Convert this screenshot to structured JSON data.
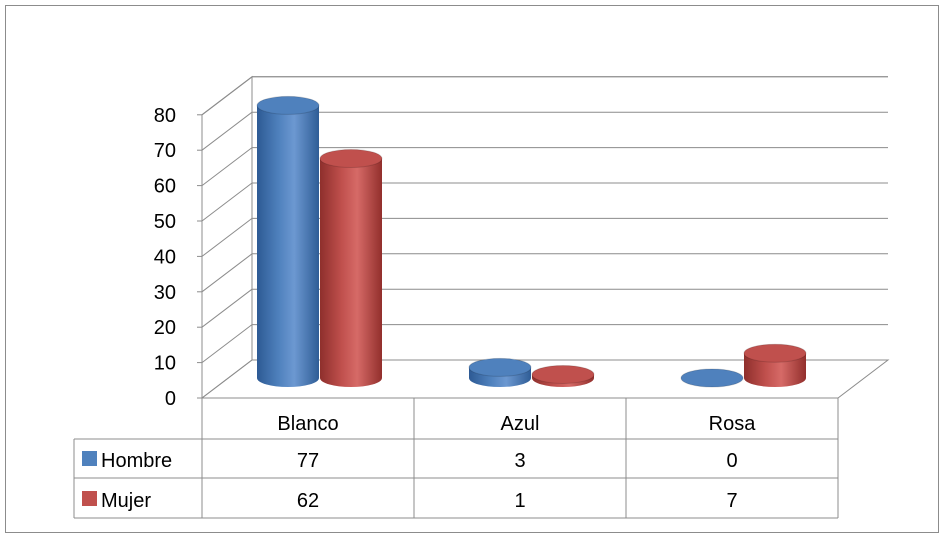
{
  "chart_data": {
    "type": "bar",
    "title": "",
    "xlabel": "",
    "ylabel": "",
    "categories": [
      "Blanco",
      "Azul",
      "Rosa"
    ],
    "series": [
      {
        "name": "Hombre",
        "values": [
          77,
          3,
          0
        ],
        "color": "#4f81bd"
      },
      {
        "name": "Mujer",
        "values": [
          62,
          1,
          7
        ],
        "color": "#c0504d"
      }
    ],
    "ylim": [
      0,
      80
    ],
    "yticks": [
      "0",
      "10",
      "20",
      "30",
      "40",
      "50",
      "60",
      "70",
      "80"
    ],
    "grid": true,
    "style": "3d-cylinder",
    "legend": "data-table"
  }
}
